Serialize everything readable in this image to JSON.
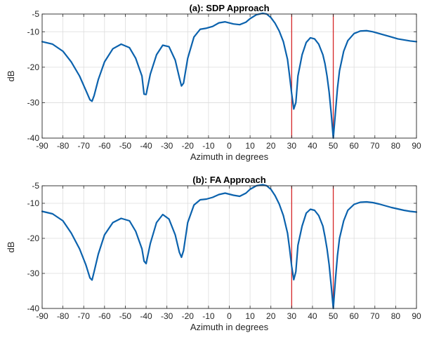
{
  "chart_data": [
    {
      "type": "line",
      "title": "(a): SDP Approach",
      "xlabel": "Azimuth in degrees",
      "ylabel": "dB",
      "xlim": [
        -90,
        90
      ],
      "ylim": [
        -40,
        -5
      ],
      "xticks": [
        -90,
        -80,
        -70,
        -60,
        -50,
        -40,
        -30,
        -20,
        -10,
        0,
        10,
        20,
        30,
        40,
        50,
        60,
        70,
        80,
        90
      ],
      "yticks": [
        -5,
        -10,
        -20,
        -30,
        -40
      ],
      "grid": true,
      "vlines": [
        30,
        50
      ],
      "series": [
        {
          "color": "#0b62ad",
          "x": [
            -90,
            -85,
            -80,
            -76,
            -72,
            -69,
            -67,
            -66,
            -65,
            -63,
            -60,
            -56,
            -52,
            -48,
            -45,
            -42,
            -41,
            -40,
            -38,
            -35,
            -32,
            -29,
            -26,
            -24,
            -23,
            -22,
            -20,
            -17,
            -14,
            -11,
            -8,
            -5,
            -2,
            0,
            2,
            5,
            8,
            10,
            13,
            16,
            18,
            20,
            22,
            24,
            26,
            28,
            29,
            30,
            31,
            32,
            33,
            35,
            37,
            39,
            41,
            43,
            45,
            46,
            47,
            48,
            49,
            50,
            51,
            52,
            53,
            55,
            57,
            60,
            63,
            66,
            69,
            72,
            75,
            78,
            81,
            84,
            87,
            90
          ],
          "y": [
            -12.8,
            -13.5,
            -15.5,
            -18.5,
            -22.5,
            -26.5,
            -29.2,
            -29.6,
            -28,
            -23.5,
            -18.5,
            -14.8,
            -13.5,
            -14.5,
            -17.5,
            -22.5,
            -27.6,
            -27.7,
            -22,
            -16.5,
            -13.8,
            -14.2,
            -18,
            -23,
            -25.3,
            -24.5,
            -17.5,
            -11.5,
            -9.3,
            -9,
            -8.5,
            -7.5,
            -7.2,
            -7.5,
            -7.8,
            -8,
            -7.3,
            -6.3,
            -5.2,
            -4.8,
            -5,
            -6,
            -7.6,
            -9.8,
            -12.8,
            -17.8,
            -22.5,
            -27.5,
            -31.8,
            -30,
            -22.5,
            -16.5,
            -13,
            -11.7,
            -12,
            -13.5,
            -16.5,
            -19,
            -22.5,
            -27,
            -33,
            -40,
            -33,
            -26,
            -21,
            -15.5,
            -12.5,
            -10.5,
            -9.8,
            -9.7,
            -10,
            -10.5,
            -11,
            -11.5,
            -12,
            -12.3,
            -12.6,
            -12.8
          ]
        }
      ]
    },
    {
      "type": "line",
      "title": "(b): FA Approach",
      "xlabel": "Azimuth in degrees",
      "ylabel": "dB",
      "xlim": [
        -90,
        90
      ],
      "ylim": [
        -40,
        -5
      ],
      "xticks": [
        -90,
        -80,
        -70,
        -60,
        -50,
        -40,
        -30,
        -20,
        -10,
        0,
        10,
        20,
        30,
        40,
        50,
        60,
        70,
        80,
        90
      ],
      "yticks": [
        -5,
        -10,
        -20,
        -30,
        -40
      ],
      "grid": true,
      "vlines": [
        30,
        50
      ],
      "series": [
        {
          "color": "#0b62ad",
          "x": [
            -90,
            -85,
            -80,
            -76,
            -72,
            -69,
            -67,
            -66,
            -65,
            -63,
            -60,
            -56,
            -52,
            -48,
            -45,
            -42,
            -41,
            -40,
            -38,
            -35,
            -32,
            -29,
            -26,
            -24,
            -23,
            -22,
            -20,
            -17,
            -14,
            -11,
            -8,
            -5,
            -2,
            0,
            2,
            5,
            8,
            10,
            13,
            16,
            18,
            20,
            22,
            24,
            26,
            28,
            29,
            30,
            31,
            32,
            33,
            35,
            37,
            39,
            41,
            43,
            45,
            46,
            47,
            48,
            49,
            50,
            51,
            52,
            53,
            55,
            57,
            60,
            63,
            66,
            69,
            72,
            75,
            78,
            81,
            84,
            87,
            90
          ],
          "y": [
            -12.3,
            -13,
            -15,
            -18.5,
            -23,
            -27.5,
            -31.3,
            -31.9,
            -29.5,
            -24.5,
            -19,
            -15.5,
            -14.3,
            -15,
            -18,
            -23,
            -26.5,
            -27.2,
            -21.5,
            -15.5,
            -13.2,
            -14.5,
            -19,
            -24,
            -25.4,
            -23.5,
            -15.5,
            -10.5,
            -9,
            -8.8,
            -8.3,
            -7.5,
            -7.1,
            -7.4,
            -7.7,
            -8,
            -7.1,
            -6,
            -5,
            -4.7,
            -5,
            -6,
            -7.8,
            -10.2,
            -13.5,
            -18.5,
            -23,
            -28,
            -31.8,
            -29.5,
            -22,
            -16.5,
            -12.8,
            -11.7,
            -12,
            -13.5,
            -16.5,
            -19.5,
            -23,
            -27.5,
            -33.5,
            -40,
            -32,
            -25,
            -20,
            -15,
            -12,
            -10.3,
            -9.7,
            -9.6,
            -9.8,
            -10.2,
            -10.7,
            -11.2,
            -11.6,
            -12,
            -12.3,
            -12.5
          ]
        }
      ]
    }
  ]
}
